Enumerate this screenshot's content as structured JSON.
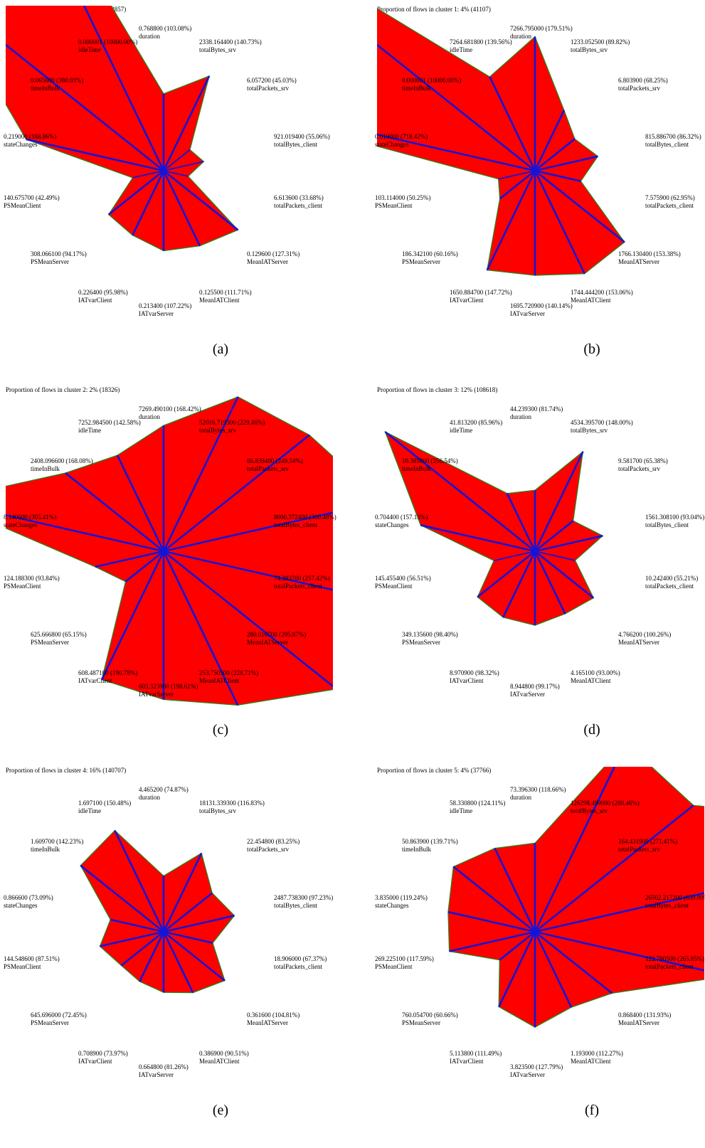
{
  "features": [
    "duration",
    "totalBytes_srv",
    "totalPackets_srv",
    "totalBytes_client",
    "totalPackets_client",
    "MeanIATServer",
    "MeanIATClient",
    "IATvarServer",
    "IATvarClient",
    "PSMeanServer",
    "PSMeanClient",
    "stateChanges",
    "timeInBulk",
    "idleTime"
  ],
  "colors": {
    "fill": "#ff0000",
    "axis": "#1414d8",
    "outline": "#1e8c1e"
  },
  "chart_data": [
    {
      "type": "radar",
      "caption": "(a)",
      "title": "Proportion of flows in cluster 0: 59% (502857)",
      "values": [
        103.08,
        140.73,
        45.03,
        55.06,
        33.68,
        127.31,
        111.71,
        107.22,
        95.98,
        94.17,
        42.49,
        188.86,
        380.03,
        10000.0
      ],
      "labels": [
        "0.768800 (103.08%)",
        "2338.164400 (140.73%)",
        "6.057200 (45.03%)",
        "921.019400 (55.06%)",
        "6.613600 (33.68%)",
        "0.129600 (127.31%)",
        "0.125500 (111.71%)",
        "0.213400 (107.22%)",
        "0.226400 (95.98%)",
        "308.066100 (94.17%)",
        "140.675700 (42.49%)",
        "0.219000 (188.86%)",
        "0.065600 (380.03%)",
        "0.000001 (10000.00%)"
      ]
    },
    {
      "type": "radar",
      "caption": "(b)",
      "title": "Proportion of flows in cluster 1: 4% (41107)",
      "values": [
        179.51,
        89.82,
        68.25,
        86.32,
        62.95,
        153.38,
        153.06,
        140.14,
        147.72,
        60.16,
        50.25,
        718.42,
        10000.0,
        139.56
      ],
      "labels": [
        "7266.795000 (179.51%)",
        "1233.052500 (89.82%)",
        "6.803900 (68.25%)",
        "815.886700 (86.32%)",
        "7.575900 (62.95%)",
        "1766.130400 (153.38%)",
        "1744.444200 (153.06%)",
        "1695.720900 (140.14%)",
        "1650.884700 (147.72%)",
        "186.342100 (60.16%)",
        "103.114000 (50.25%)",
        "0.019000 (718.42%)",
        "0.000001 (10000.00%)",
        "7264.681800 (139.56%)"
      ]
    },
    {
      "type": "radar",
      "caption": "(c)",
      "title": "Proportion of flows in cluster 2: 2% (18326)",
      "values": [
        168.42,
        229.46,
        249.54,
        300.48,
        257.42,
        295.87,
        228.71,
        198.61,
        190.78,
        65.15,
        93.84,
        305.41,
        168.08,
        142.58
      ],
      "labels": [
        "7269.490100 (168.42%)",
        "52016.719300 (229.46%)",
        "86.839400 (249.54%)",
        "8000.372400 (300.48%)",
        "74.383700 (257.42%)",
        "280.016700 (295.87%)",
        "253.750500 (228.71%)",
        "603.323900 (198.61%)",
        "608.487100 (190.78%)",
        "625.666800 (65.15%)",
        "124.188300 (93.84%)",
        "8.140600 (305.41%)",
        "2408.096600 (168.08%)",
        "7252.984500 (142.58%)"
      ]
    },
    {
      "type": "radar",
      "caption": "(d)",
      "title": "Proportion of flows in cluster 3: 12% (108618)",
      "values": [
        81.74,
        148.0,
        65.38,
        93.04,
        55.21,
        100.26,
        93.0,
        99.17,
        98.32,
        98.4,
        56.51,
        157.13,
        256.54,
        85.96
      ],
      "labels": [
        "44.239300 (81.74%)",
        "4534.395700 (148.00%)",
        "9.581700 (65.38%)",
        "1561.308100 (93.04%)",
        "10.242400 (55.21%)",
        "4.766200 (100.26%)",
        "4.165100 (93.00%)",
        "8.944800 (99.17%)",
        "8.970900 (98.32%)",
        "349.135600 (98.40%)",
        "145.455400 (56.51%)",
        "0.704400 (157.13%)",
        "10.385800 (256.54%)",
        "41.813200 (85.96%)"
      ]
    },
    {
      "type": "radar",
      "caption": "(e)",
      "title": "Proportion of flows in cluster 4: 16% (140707)",
      "values": [
        74.87,
        116.83,
        83.25,
        97.23,
        67.37,
        104.81,
        90.51,
        81.26,
        73.97,
        72.45,
        87.51,
        73.09,
        142.23,
        150.48
      ],
      "labels": [
        "4.465200 (74.87%)",
        "18131.339300 (116.83%)",
        "22.454800 (83.25%)",
        "2487.738300 (97.23%)",
        "18.906000 (67.37%)",
        "0.361600 (104.81%)",
        "0.386900 (90.51%)",
        "0.664800 (81.26%)",
        "0.708900 (73.97%)",
        "645.696000 (72.45%)",
        "144.548600 (87.51%)",
        "0.866600 (73.09%)",
        "1.609700 (142.23%)",
        "1.697100 (150.48%)"
      ]
    },
    {
      "type": "radar",
      "caption": "(f)",
      "title": "Proportion of flows in cluster 5: 4% (37766)",
      "values": [
        118.66,
        280.46,
        271.41,
        659.8,
        265.85,
        131.93,
        112.27,
        127.79,
        111.49,
        60.66,
        117.59,
        119.24,
        139.71,
        124.11
      ],
      "labels": [
        "73.396300 (118.66%)",
        "126298.499900 (280.46%)",
        "164.431900 (271.41%)",
        "26502.217200 (659.80%)",
        "122.780500 (265.85%)",
        "0.868400 (131.93%)",
        "1.193000 (112.27%)",
        "3.823500 (127.79%)",
        "5.113800 (111.49%)",
        "760.054700 (60.66%)",
        "269.225100 (117.59%)",
        "3.835000 (119.24%)",
        "50.863900 (139.71%)",
        "58.330800 (124.11%)"
      ]
    }
  ]
}
